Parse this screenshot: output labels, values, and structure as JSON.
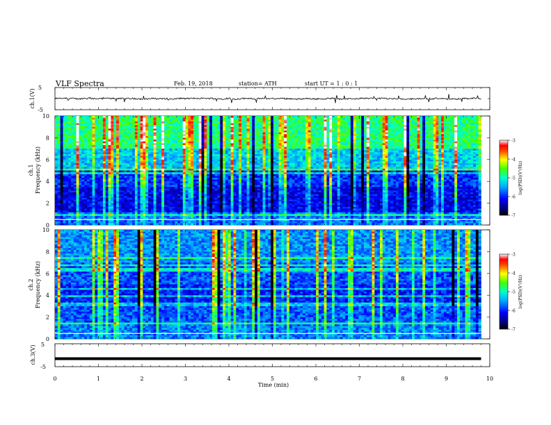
{
  "header": {
    "title": "VLF  Spectra",
    "date": "Feb. 19, 2018",
    "station": "station= ATH",
    "start_ut": "start  UT  =   1 : 0  : 1"
  },
  "chart_data": [
    {
      "type": "line",
      "panel": "ch1-waveform",
      "ylabel": "ch.1(V)",
      "ylim": [
        -5,
        5
      ],
      "yticks": [
        "5",
        "-5"
      ],
      "xlim": [
        0,
        10
      ],
      "series": [
        {
          "values_description": "noisy trace near 0 V",
          "baseline": 0
        }
      ],
      "line_color": "#000000"
    },
    {
      "type": "heatmap",
      "panel": "ch1-spectrogram",
      "ylabel_top": "ch.1",
      "ylabel": "Frequency  (kHz)",
      "ylim": [
        0,
        10
      ],
      "yticks": [
        "0",
        "2",
        "4",
        "6",
        "8",
        "10"
      ],
      "xlim": [
        0,
        10
      ],
      "colorbar": {
        "label": "log(PSD)(V²/Hz)",
        "range": [
          -7,
          -3
        ],
        "ticks": [
          "-3",
          "-4",
          "-5",
          "-6",
          "-7"
        ]
      }
    },
    {
      "type": "heatmap",
      "panel": "ch2-spectrogram",
      "ylabel_top": "ch.2",
      "ylabel": "Frequency  (kHz)",
      "ylim": [
        0,
        10
      ],
      "yticks": [
        "0",
        "2",
        "4",
        "6",
        "8",
        "10"
      ],
      "xlim": [
        0,
        10
      ],
      "colorbar": {
        "label": "log(PSD)(V²/Hz)",
        "range": [
          -7,
          -3
        ],
        "ticks": [
          "-3",
          "-4",
          "-5",
          "-6",
          "-7"
        ]
      }
    },
    {
      "type": "line",
      "panel": "ch3-waveform",
      "ylabel": "ch.3(V)",
      "ylim": [
        -5,
        5
      ],
      "yticks": [
        "5",
        "-5"
      ],
      "xlim": [
        0,
        10
      ],
      "series": [
        {
          "values_description": "flat thick line near -1.5 V",
          "baseline": -1.5
        }
      ],
      "line_color": "#000000"
    }
  ],
  "x_axis": {
    "label": "Time  (min)",
    "ticks": [
      "0",
      "1",
      "2",
      "3",
      "4",
      "5",
      "6",
      "7",
      "8",
      "9",
      "10"
    ]
  }
}
